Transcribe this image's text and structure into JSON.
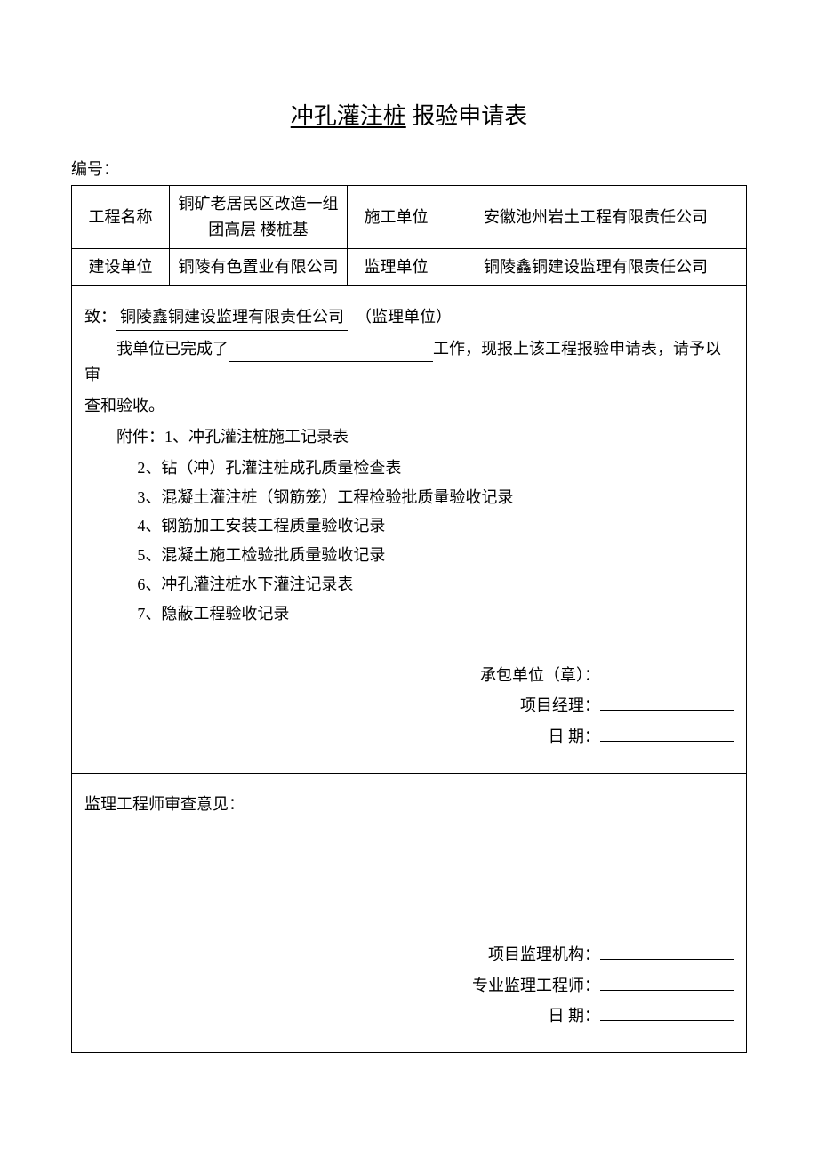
{
  "title": {
    "underlined": "冲孔灌注桩",
    "rest": " 报验申请表"
  },
  "doc_number_label": "编号：",
  "info_table": {
    "r1c1": "工程名称",
    "r1c2": "铜矿老居民区改造一组团高层    楼桩基",
    "r1c3": "施工单位",
    "r1c4": "安徽池州岩土工程有限责任公司",
    "r2c1": "建设单位",
    "r2c2": "铜陵有色置业有限公司",
    "r2c3": "监理单位",
    "r2c4": "铜陵鑫铜建设监理有限责任公司"
  },
  "body": {
    "to_prefix": "致：",
    "to_name": "   铜陵鑫铜建设监理有限责任公司   ",
    "to_suffix": "（监理单位）",
    "line2a": "我单位已完成了",
    "line2b": "工作，现报上该工程报验申请表，请予以审",
    "line3": "查和验收。",
    "attach_label": "附件：",
    "attachments": [
      "1、冲孔灌注桩施工记录表",
      "2、钻（冲）孔灌注桩成孔质量检查表",
      "3、混凝土灌注桩（钢筋笼）工程检验批质量验收记录",
      "4、钢筋加工安装工程质量验收记录",
      "5、混凝土施工检验批质量验收记录",
      "6、冲孔灌注桩水下灌注记录表",
      "7、隐蔽工程验收记录"
    ],
    "sig1": {
      "l1": "承包单位（章）：",
      "l2": "项目经理：",
      "l3": "日    期："
    }
  },
  "review": {
    "heading": "监理工程师审查意见：",
    "sig2": {
      "l1": "项目监理机构：",
      "l2": "专业监理工程师：",
      "l3": "日    期："
    }
  }
}
